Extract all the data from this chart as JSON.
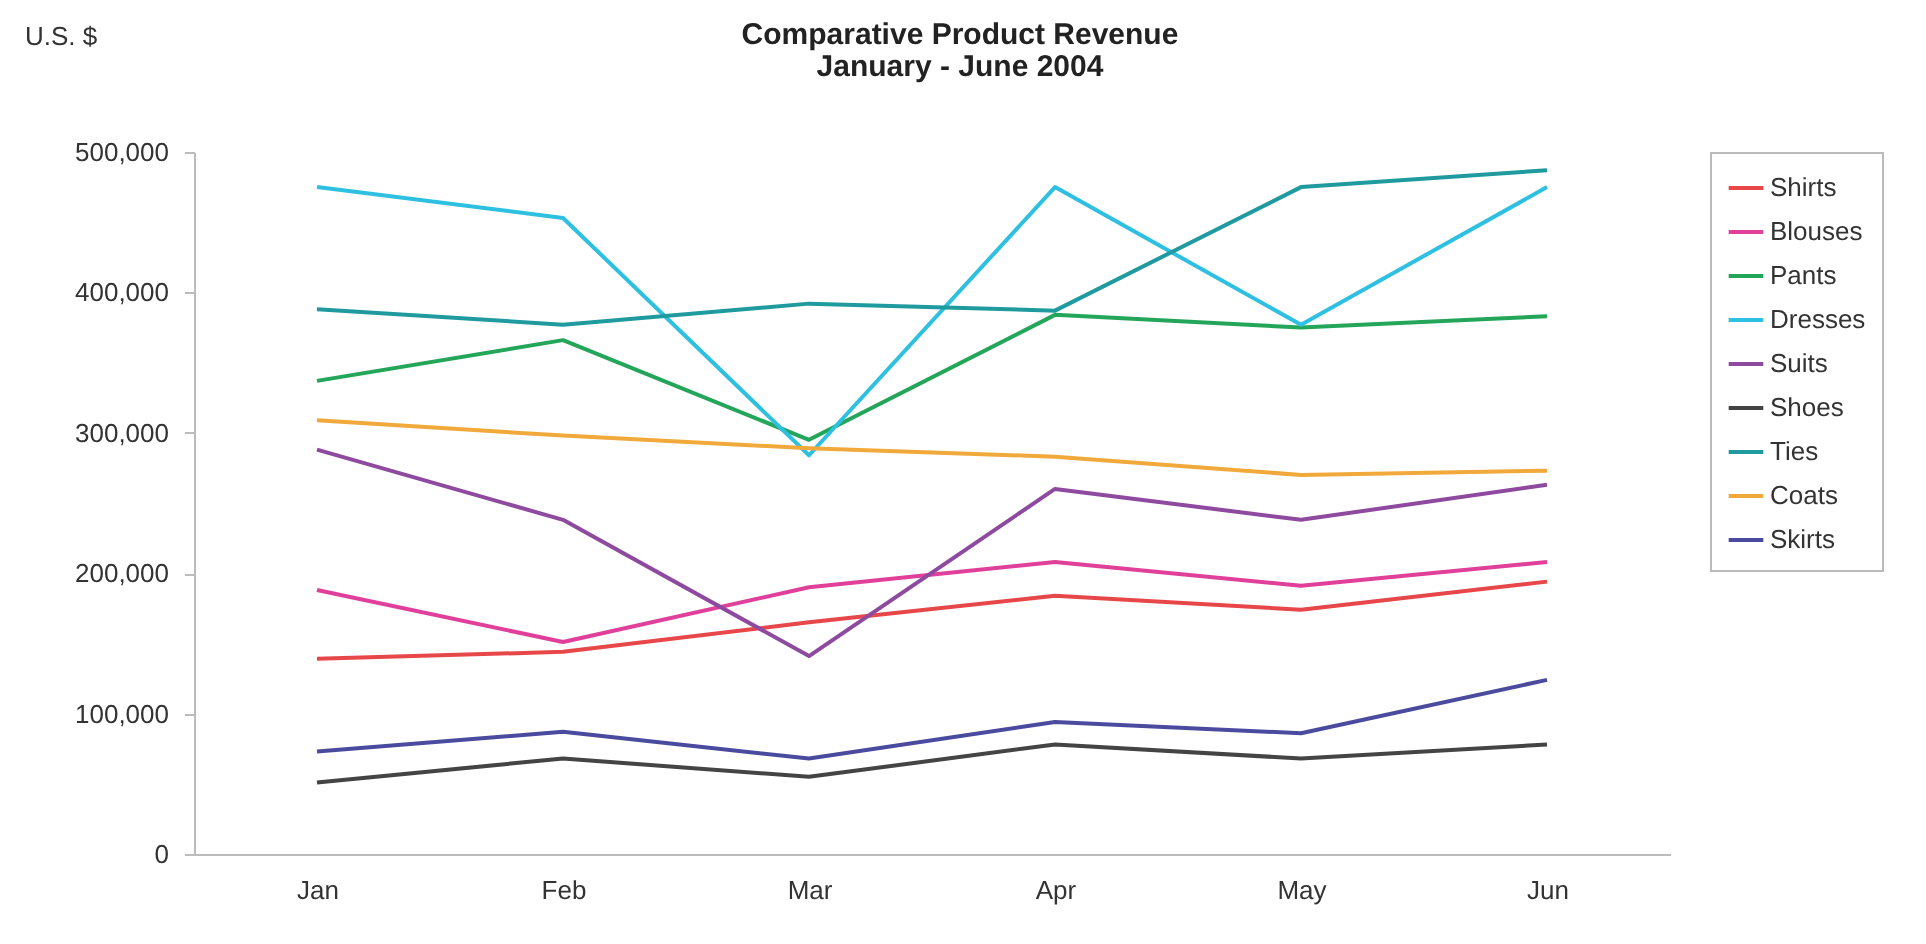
{
  "chart_data": {
    "type": "line",
    "title": "Comparative Product Revenue",
    "subtitle": "January - June 2004",
    "ylabel": "U.S. $",
    "categories": [
      "Jan",
      "Feb",
      "Mar",
      "Apr",
      "May",
      "Jun"
    ],
    "ylim": [
      0,
      500000
    ],
    "yticks": [
      {
        "value": 0,
        "label": "0"
      },
      {
        "value": 100000,
        "label": "100,000"
      },
      {
        "value": 200000,
        "label": "200,000"
      },
      {
        "value": 300000,
        "label": "300,000"
      },
      {
        "value": 400000,
        "label": "400,000"
      },
      {
        "value": 500000,
        "label": "500,000"
      }
    ],
    "grid": false,
    "legend": "right",
    "marker": "none",
    "line_style": "solid",
    "series": [
      {
        "name": "Shirts",
        "color": "#e8474a",
        "values": [
          139000,
          144000,
          165000,
          184000,
          174000,
          194000
        ]
      },
      {
        "name": "Blouses",
        "color": "#e0409a",
        "values": [
          188000,
          151000,
          190000,
          208000,
          191000,
          208000
        ]
      },
      {
        "name": "Pants",
        "color": "#23a55a",
        "values": [
          337000,
          366000,
          295000,
          384000,
          375000,
          383000
        ]
      },
      {
        "name": "Dresses",
        "color": "#2ec0e0",
        "values": [
          475000,
          453000,
          284000,
          475000,
          377000,
          475000
        ]
      },
      {
        "name": "Suits",
        "color": "#8e4a9e",
        "values": [
          288000,
          238000,
          141000,
          260000,
          238000,
          263000
        ]
      },
      {
        "name": "Shoes",
        "color": "#444444",
        "values": [
          51000,
          68000,
          55000,
          78000,
          68000,
          78000
        ]
      },
      {
        "name": "Ties",
        "color": "#1f9a9e",
        "values": [
          388000,
          377000,
          392000,
          387000,
          475000,
          487000
        ]
      },
      {
        "name": "Coats",
        "color": "#f2a93b",
        "values": [
          309000,
          298000,
          289000,
          283000,
          270000,
          273000
        ]
      },
      {
        "name": "Skirts",
        "color": "#4a4a9e",
        "values": [
          73000,
          87000,
          68000,
          94000,
          86000,
          124000
        ]
      }
    ]
  }
}
